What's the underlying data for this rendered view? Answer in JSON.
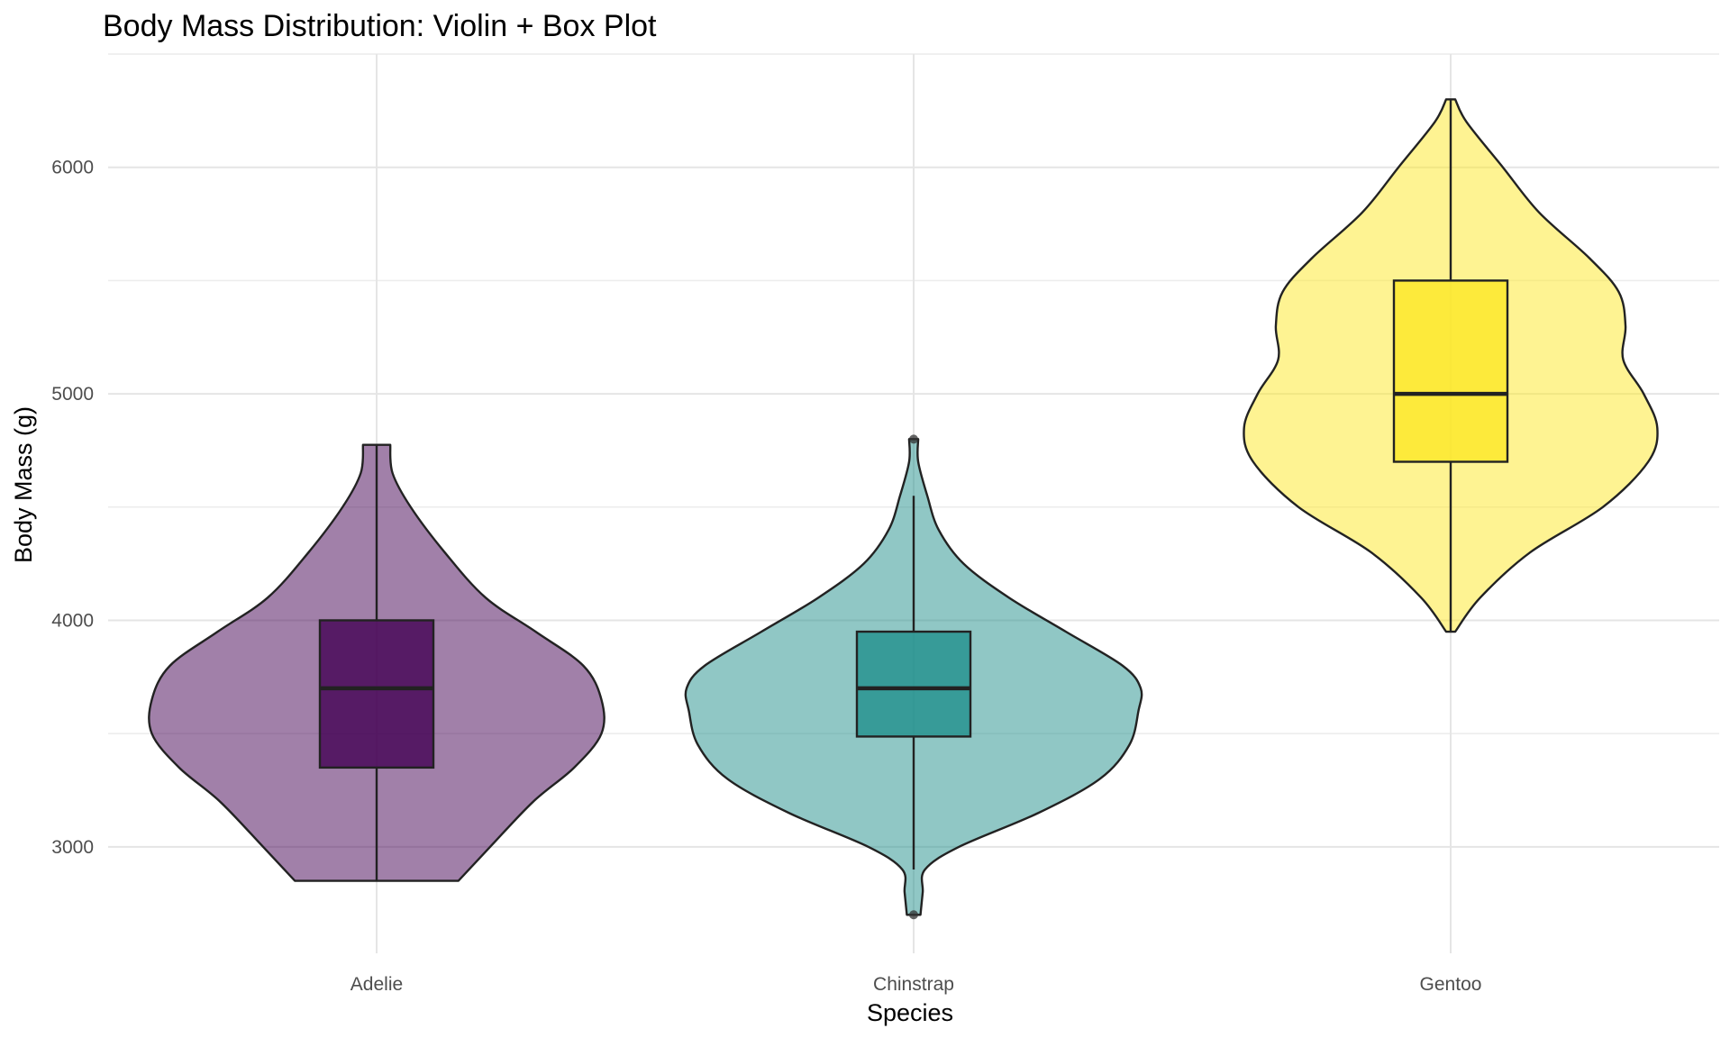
{
  "chart_data": {
    "type": "violin",
    "title": "Body Mass Distribution: Violin + Box Plot",
    "xlabel": "Species",
    "ylabel": "Body Mass (g)",
    "ylim": [
      2530,
      6500
    ],
    "yticks": [
      3000,
      4000,
      5000,
      6000
    ],
    "grid": true,
    "categories": [
      "Adelie",
      "Chinstrap",
      "Gentoo"
    ],
    "colors": {
      "Adelie": "#440154",
      "Chinstrap": "#21908C",
      "Gentoo": "#FDE725"
    },
    "series": [
      {
        "category": "Adelie",
        "box": {
          "lower_whisker": 2850,
          "q1": 3350,
          "median": 3700,
          "q3": 4000,
          "upper_whisker": 4775
        },
        "outliers": [],
        "density": [
          [
            2850,
            0.36
          ],
          [
            3000,
            0.5
          ],
          [
            3200,
            0.69
          ],
          [
            3350,
            0.87
          ],
          [
            3500,
            0.99
          ],
          [
            3650,
            0.99
          ],
          [
            3800,
            0.91
          ],
          [
            3950,
            0.7
          ],
          [
            4100,
            0.48
          ],
          [
            4300,
            0.3
          ],
          [
            4500,
            0.15
          ],
          [
            4650,
            0.07
          ],
          [
            4775,
            0.06
          ]
        ]
      },
      {
        "category": "Chinstrap",
        "box": {
          "lower_whisker": 2900,
          "q1": 3487,
          "median": 3700,
          "q3": 3950,
          "upper_whisker": 4550
        },
        "outliers": [
          2700,
          4800
        ],
        "density": [
          [
            2700,
            0.03
          ],
          [
            2800,
            0.04
          ],
          [
            2900,
            0.05
          ],
          [
            3000,
            0.2
          ],
          [
            3150,
            0.55
          ],
          [
            3300,
            0.82
          ],
          [
            3450,
            0.95
          ],
          [
            3600,
            0.99
          ],
          [
            3700,
            1.0
          ],
          [
            3800,
            0.92
          ],
          [
            3950,
            0.67
          ],
          [
            4100,
            0.42
          ],
          [
            4250,
            0.22
          ],
          [
            4400,
            0.11
          ],
          [
            4550,
            0.06
          ],
          [
            4700,
            0.02
          ],
          [
            4800,
            0.02
          ]
        ]
      },
      {
        "category": "Gentoo",
        "box": {
          "lower_whisker": 3950,
          "q1": 4700,
          "median": 5000,
          "q3": 5500,
          "upper_whisker": 6300
        },
        "outliers": [],
        "density": [
          [
            3950,
            0.02
          ],
          [
            4100,
            0.13
          ],
          [
            4300,
            0.35
          ],
          [
            4500,
            0.67
          ],
          [
            4700,
            0.87
          ],
          [
            4850,
            0.91
          ],
          [
            5000,
            0.85
          ],
          [
            5150,
            0.76
          ],
          [
            5300,
            0.77
          ],
          [
            5450,
            0.74
          ],
          [
            5600,
            0.61
          ],
          [
            5800,
            0.39
          ],
          [
            6000,
            0.23
          ],
          [
            6200,
            0.07
          ],
          [
            6300,
            0.02
          ]
        ]
      }
    ]
  }
}
